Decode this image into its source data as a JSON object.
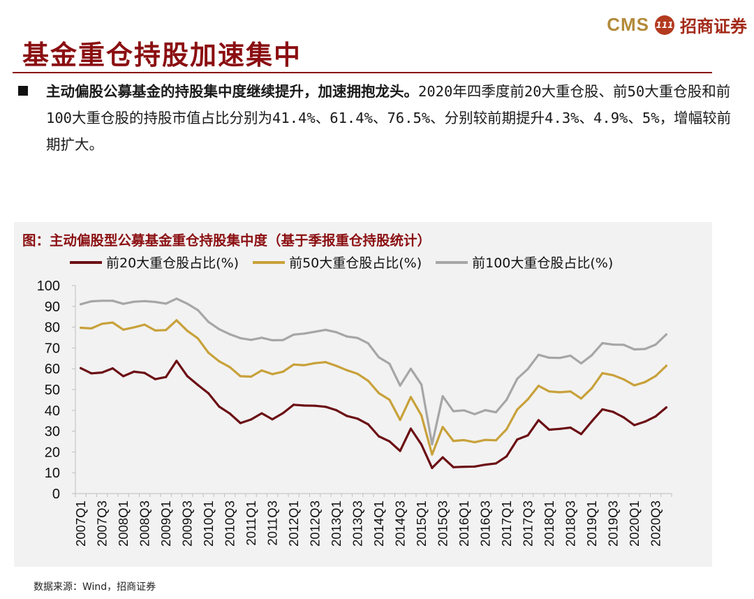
{
  "header": {
    "logo_cms": "CMS",
    "logo_badge": "111",
    "logo_cn": "招商证券",
    "title": "基金重仓持股加速集中"
  },
  "intro": {
    "bold": "主动偏股公募基金的持股集中度继续提升，加速拥抱龙头。",
    "text": "2020年四季度前20大重仓股、前50大重仓股和前100大重仓股的持股市值占比分别为41.4%、61.4%、76.5%、分别较前期提升4.3%、4.9%、5%，增幅较前期扩大。"
  },
  "chart_title": "图：主动偏股型公募基金重仓持股集中度（基于季报重仓持股统计）",
  "source": "数据来源：Wind，招商证券",
  "chart_data": {
    "type": "line",
    "ylim": [
      0,
      100
    ],
    "yticks": [
      0,
      10,
      20,
      30,
      40,
      50,
      60,
      70,
      80,
      90,
      100
    ],
    "x": [
      "2007Q1",
      "2007Q2",
      "2007Q3",
      "2007Q4",
      "2008Q1",
      "2008Q2",
      "2008Q3",
      "2008Q4",
      "2009Q1",
      "2009Q2",
      "2009Q3",
      "2009Q4",
      "2010Q1",
      "2010Q2",
      "2010Q3",
      "2010Q4",
      "2011Q1",
      "2011Q2",
      "2011Q3",
      "2011Q4",
      "2012Q1",
      "2012Q2",
      "2012Q3",
      "2012Q4",
      "2013Q1",
      "2013Q2",
      "2013Q3",
      "2013Q4",
      "2014Q1",
      "2014Q2",
      "2014Q3",
      "2014Q4",
      "2015Q1",
      "2015Q2",
      "2015Q3",
      "2015Q4",
      "2016Q1",
      "2016Q2",
      "2016Q3",
      "2016Q4",
      "2017Q1",
      "2017Q2",
      "2017Q3",
      "2017Q4",
      "2018Q1",
      "2018Q2",
      "2018Q3",
      "2018Q4",
      "2019Q1",
      "2019Q2",
      "2019Q3",
      "2019Q4",
      "2020Q1",
      "2020Q2",
      "2020Q3",
      "2020Q4"
    ],
    "xtick_labels": [
      "2007Q1",
      "2007Q3",
      "2008Q1",
      "2008Q3",
      "2009Q1",
      "2009Q3",
      "2010Q1",
      "2010Q3",
      "2011Q1",
      "2011Q3",
      "2012Q1",
      "2012Q3",
      "2013Q1",
      "2013Q3",
      "2014Q1",
      "2014Q3",
      "2015Q1",
      "2015Q3",
      "2016Q1",
      "2016Q3",
      "2017Q1",
      "2017Q3",
      "2018Q1",
      "2018Q3",
      "2019Q1",
      "2019Q3",
      "2020Q1",
      "2020Q3"
    ],
    "grid": false,
    "legend_position": "top",
    "series": [
      {
        "name": "前20大重仓股占比(%)",
        "color": "#6b0f14",
        "values": [
          60.3,
          57.8,
          58.2,
          60.2,
          56.4,
          58.6,
          58.0,
          55.0,
          56.0,
          63.8,
          56.5,
          52.2,
          48.2,
          41.8,
          38.5,
          33.9,
          35.6,
          38.6,
          35.7,
          38.7,
          42.7,
          42.3,
          42.2,
          41.7,
          40.1,
          37.3,
          36.0,
          33.3,
          27.5,
          25.1,
          20.5,
          31.2,
          23.6,
          12.3,
          17.4,
          12.7,
          12.9,
          13.0,
          13.9,
          14.5,
          17.9,
          26.0,
          28.0,
          35.3,
          30.7,
          31.1,
          31.7,
          28.6,
          34.7,
          40.5,
          39.3,
          36.6,
          32.9,
          34.6,
          37.1,
          41.4
        ]
      },
      {
        "name": "前50大重仓股占比(%)",
        "color": "#c8a13a",
        "values": [
          79.7,
          79.4,
          81.6,
          82.2,
          78.8,
          79.9,
          81.2,
          78.4,
          78.6,
          83.3,
          78.3,
          74.6,
          67.7,
          63.6,
          60.8,
          56.4,
          56.2,
          59.2,
          57.4,
          58.6,
          62.0,
          61.7,
          62.7,
          63.2,
          61.4,
          59.3,
          57.6,
          54.2,
          48.3,
          45.1,
          35.4,
          46.4,
          37.6,
          18.8,
          32.0,
          25.3,
          25.7,
          24.7,
          25.8,
          25.6,
          30.9,
          40.4,
          45.3,
          51.8,
          49.1,
          48.7,
          49.1,
          45.7,
          50.6,
          57.9,
          56.9,
          54.9,
          52.0,
          53.6,
          56.5,
          61.4
        ]
      },
      {
        "name": "前100大重仓股占比(%)",
        "color": "#a6a6a6",
        "values": [
          91.0,
          92.4,
          92.7,
          92.7,
          91.2,
          92.2,
          92.5,
          92.1,
          91.3,
          93.7,
          91.3,
          88.2,
          82.5,
          79.0,
          76.6,
          74.7,
          73.9,
          74.9,
          73.7,
          73.8,
          76.4,
          76.9,
          77.8,
          78.7,
          77.6,
          75.5,
          74.8,
          72.2,
          65.5,
          62.4,
          51.9,
          60.0,
          52.4,
          23.7,
          46.8,
          39.6,
          40.0,
          38.2,
          40.1,
          39.1,
          45.1,
          55.2,
          59.9,
          66.7,
          65.3,
          65.2,
          66.3,
          62.6,
          66.5,
          72.3,
          71.6,
          71.5,
          69.3,
          69.5,
          71.6,
          76.5
        ]
      }
    ]
  }
}
